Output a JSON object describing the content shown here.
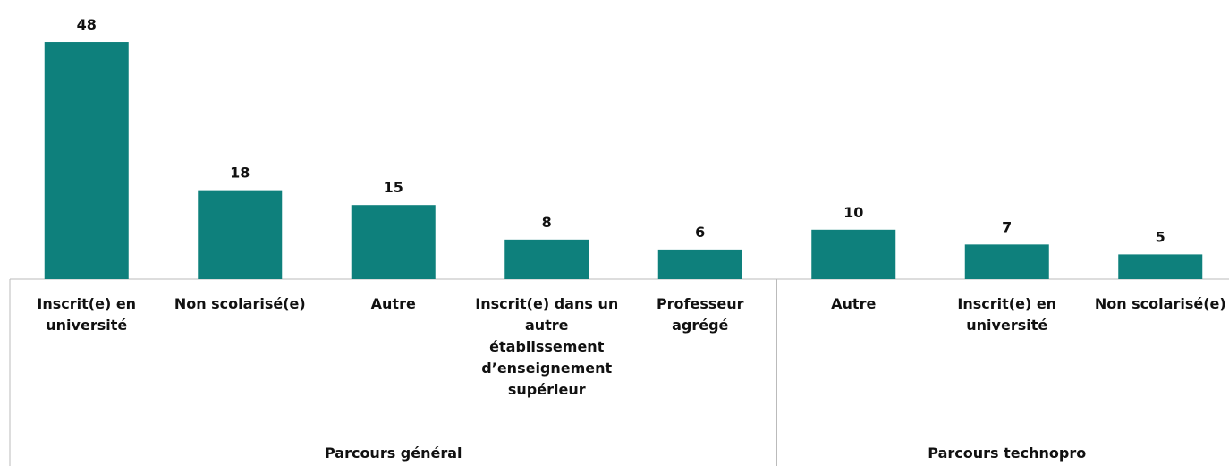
{
  "chart_data": {
    "type": "bar",
    "color": "#0e807c",
    "ylim": [
      0,
      50
    ],
    "groups": [
      {
        "name": "Parcours général",
        "categories": [
          "Inscrit(e) en université",
          "Non scolarisé(e)",
          "Autre",
          "Inscrit(e) dans un autre établissement d’enseignement supérieur",
          "Professeur agrégé"
        ],
        "values": [
          48,
          18,
          15,
          8,
          6
        ]
      },
      {
        "name": "Parcours technopro",
        "categories": [
          "Autre",
          "Inscrit(e) en université",
          "Non scolarisé(e)"
        ],
        "values": [
          10,
          7,
          5
        ]
      }
    ]
  }
}
